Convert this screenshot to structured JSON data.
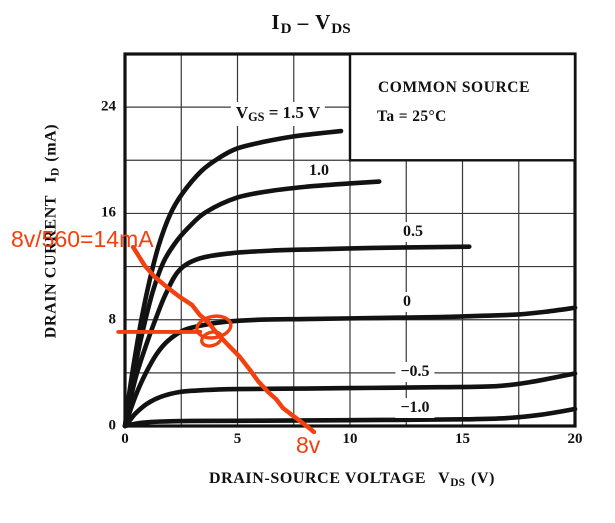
{
  "chart_data": {
    "type": "line",
    "title": "ID – VDS",
    "xlabel": "DRAIN-SOURCE VOLTAGE VDS (V)",
    "ylabel": "DRAIN CURRENT ID (mA)",
    "xlim": [
      0,
      20
    ],
    "ylim": [
      0,
      28
    ],
    "x_ticks": [
      0,
      5,
      10,
      15,
      20
    ],
    "y_ticks": [
      0,
      8,
      16,
      24
    ],
    "grid": {
      "on": true,
      "x_step_V": 2.5,
      "y_step_mA": 4
    },
    "legend_box": {
      "x_range_V": [
        10,
        20
      ],
      "y_range_mA": [
        20,
        28
      ],
      "line1": "COMMON SOURCE",
      "line2": "Ta = 25°C"
    },
    "series": [
      {
        "name": "VGS = 1.5 V",
        "points": [
          [
            0,
            0
          ],
          [
            0.2,
            2.6
          ],
          [
            0.45,
            5.3
          ],
          [
            0.75,
            8.2
          ],
          [
            1.1,
            11.0
          ],
          [
            1.5,
            13.6
          ],
          [
            2.0,
            15.9
          ],
          [
            2.55,
            17.5
          ],
          [
            3.4,
            19.2
          ],
          [
            4.2,
            20.2
          ],
          [
            5.0,
            20.9
          ],
          [
            6.2,
            21.4
          ],
          [
            7.5,
            21.8
          ],
          [
            8.5,
            22.0
          ],
          [
            9.6,
            22.2
          ]
        ]
      },
      {
        "name": "VGS = 1.0 V",
        "points": [
          [
            0,
            0
          ],
          [
            0.2,
            2.2
          ],
          [
            0.5,
            4.9
          ],
          [
            0.85,
            7.6
          ],
          [
            1.25,
            10.2
          ],
          [
            1.7,
            12.3
          ],
          [
            2.2,
            13.7
          ],
          [
            2.8,
            14.9
          ],
          [
            3.6,
            16.1
          ],
          [
            5.0,
            17.2
          ],
          [
            6.5,
            17.7
          ],
          [
            8.0,
            18.0
          ],
          [
            9.5,
            18.2
          ],
          [
            11.3,
            18.4
          ]
        ]
      },
      {
        "name": "VGS = 0.5 V",
        "points": [
          [
            0,
            0
          ],
          [
            0.2,
            1.7
          ],
          [
            0.5,
            3.8
          ],
          [
            0.9,
            5.9
          ],
          [
            1.35,
            8.0
          ],
          [
            1.8,
            9.9
          ],
          [
            2.4,
            11.7
          ],
          [
            3.3,
            12.6
          ],
          [
            4.7,
            13.0
          ],
          [
            6.5,
            13.2
          ],
          [
            8.5,
            13.3
          ],
          [
            11,
            13.4
          ],
          [
            13,
            13.45
          ],
          [
            15.3,
            13.5
          ]
        ]
      },
      {
        "name": "VGS = 0 V",
        "points": [
          [
            0,
            0
          ],
          [
            0.2,
            1.0
          ],
          [
            0.5,
            2.4
          ],
          [
            0.9,
            3.9
          ],
          [
            1.4,
            5.4
          ],
          [
            1.9,
            6.4
          ],
          [
            2.6,
            7.2
          ],
          [
            3.5,
            7.6
          ],
          [
            4.5,
            7.85
          ],
          [
            6,
            8.0
          ],
          [
            8,
            8.05
          ],
          [
            10,
            8.1
          ],
          [
            12,
            8.15
          ],
          [
            14,
            8.2
          ],
          [
            16,
            8.3
          ],
          [
            17.5,
            8.4
          ],
          [
            18.7,
            8.6
          ],
          [
            20,
            8.9
          ]
        ]
      },
      {
        "name": "VGS = -0.5 V",
        "points": [
          [
            0,
            0
          ],
          [
            0.2,
            0.4
          ],
          [
            0.5,
            1.0
          ],
          [
            1.0,
            1.7
          ],
          [
            1.6,
            2.2
          ],
          [
            2.4,
            2.55
          ],
          [
            3.5,
            2.7
          ],
          [
            5,
            2.78
          ],
          [
            8,
            2.82
          ],
          [
            11,
            2.87
          ],
          [
            14,
            2.92
          ],
          [
            16.5,
            3.0
          ],
          [
            18,
            3.3
          ],
          [
            20,
            3.95
          ]
        ]
      },
      {
        "name": "VGS = -1.0 V",
        "points": [
          [
            0,
            0
          ],
          [
            0.3,
            0.12
          ],
          [
            0.8,
            0.25
          ],
          [
            1.5,
            0.33
          ],
          [
            3,
            0.38
          ],
          [
            6,
            0.4
          ],
          [
            9,
            0.43
          ],
          [
            12,
            0.46
          ],
          [
            15,
            0.5
          ],
          [
            17,
            0.6
          ],
          [
            18.5,
            0.85
          ],
          [
            20,
            1.28
          ]
        ]
      }
    ],
    "curve_labels": [
      "VGS = 1.5 V",
      "1.0",
      "0.5",
      "0",
      "−0.5",
      "−1.0"
    ],
    "annotations": {
      "color": "#f2400e",
      "formula_text": "8v/560=14mA",
      "x_intercept_label": "8v",
      "load_line_points": [
        [
          0.36,
          13.47
        ],
        [
          0.89,
          12.04
        ],
        [
          1.33,
          11.21
        ],
        [
          1.91,
          10.39
        ],
        [
          2.44,
          9.71
        ],
        [
          2.98,
          9.11
        ],
        [
          3.33,
          8.35
        ],
        [
          3.69,
          7.83
        ],
        [
          4.04,
          7.08
        ],
        [
          4.58,
          6.1
        ],
        [
          5.11,
          5.19
        ],
        [
          5.56,
          4.21
        ],
        [
          5.91,
          3.39
        ],
        [
          6.36,
          2.56
        ],
        [
          6.71,
          2.03
        ],
        [
          7.02,
          1.35
        ],
        [
          7.42,
          0.83
        ],
        [
          7.78,
          0.38
        ],
        [
          8.13,
          -0.08
        ],
        [
          8.4,
          -0.45
        ]
      ],
      "marker_line": {
        "y_mA": 7.08,
        "x_from_V": -0.3,
        "x_to_V": 3.35
      },
      "operating_point": {
        "vds_V": 4.0,
        "id_mA": 7.3
      },
      "scribble_loops": [
        {
          "cx_V": 3.95,
          "cy_mA": 7.45,
          "rx_V": 0.76,
          "ry_mA": 0.8,
          "rot": -10
        },
        {
          "cx_V": 3.85,
          "cy_mA": 6.55,
          "rx_V": 0.45,
          "ry_mA": 0.5,
          "rot": -18
        }
      ]
    }
  },
  "labels": {
    "title": {
      "sym1": "I",
      "sub1": "D",
      "dash": " – ",
      "sym2": "V",
      "sub2": "DS"
    },
    "yaxis": {
      "text": "DRAIN CURRENT",
      "sym": "I",
      "sub": "D",
      "unit": "(mA)"
    },
    "xaxis": {
      "text": "DRAIN-SOURCE VOLTAGE",
      "sym": "V",
      "sub": "DS",
      "unit": "(V)"
    },
    "legend": {
      "line1": "COMMON SOURCE",
      "line2": "Ta = 25°C"
    },
    "curves": {
      "vgs": {
        "sym": "V",
        "sub": "GS",
        "rest": " = 1.5 V"
      },
      "v10": "1.0",
      "v05": "0.5",
      "v00": "0",
      "vm05": "−0.5",
      "vm10": "−1.0"
    },
    "red": {
      "formula": "8v/560=14mA",
      "x_label": "8v"
    }
  }
}
